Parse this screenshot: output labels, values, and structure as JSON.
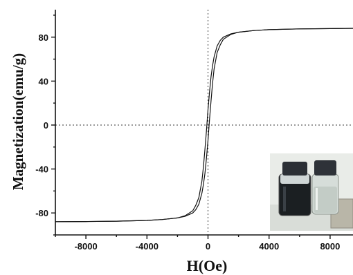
{
  "chart_data": {
    "type": "line",
    "title": "",
    "xlabel": "H(Oe)",
    "ylabel": "Magnetization(emu/g)",
    "xlim": [
      -10000,
      9500
    ],
    "ylim": [
      -100,
      105
    ],
    "xticks": [
      -8000,
      -4000,
      0,
      4000,
      8000
    ],
    "yticks": [
      -80,
      -40,
      0,
      40,
      80
    ],
    "xtick_labels": [
      "-8000",
      "-4000",
      "0",
      "4000",
      "8000"
    ],
    "ytick_labels": [
      "-80",
      "-40",
      "0",
      "40",
      "80"
    ],
    "grid": false,
    "guides": {
      "x": 0,
      "y": 0,
      "style": "dotted"
    },
    "legend": "none",
    "inset": {
      "content": "photo of two glass vials (dark magnetic dispersion and clear liquid) beside a magnet",
      "position": "bottom-right"
    },
    "series": [
      {
        "branch": "descending",
        "x": [
          9500,
          8000,
          6000,
          4000,
          3000,
          2000,
          1500,
          1000,
          800,
          600,
          400,
          300,
          200,
          100,
          0,
          -100,
          -200,
          -300,
          -400,
          -600,
          -800,
          -1000,
          -1500,
          -2000,
          -3000,
          -4000,
          -6000,
          -8000,
          -10000
        ],
        "y": [
          88,
          87.8,
          87.5,
          86.8,
          86,
          84.5,
          83,
          80,
          77,
          72,
          62,
          54,
          44,
          30,
          14,
          -5,
          -22,
          -38,
          -51,
          -66,
          -73,
          -78,
          -82.5,
          -84.5,
          -86,
          -86.8,
          -87.5,
          -87.8,
          -88
        ]
      },
      {
        "branch": "ascending",
        "x": [
          -10000,
          -8000,
          -6000,
          -4000,
          -3000,
          -2000,
          -1500,
          -1000,
          -800,
          -600,
          -400,
          -300,
          -200,
          -100,
          0,
          100,
          200,
          300,
          400,
          600,
          800,
          1000,
          1500,
          2000,
          3000,
          4000,
          6000,
          8000,
          9500
        ],
        "y": [
          -88,
          -87.8,
          -87.5,
          -86.8,
          -86,
          -84.5,
          -83,
          -80,
          -77,
          -72,
          -62,
          -54,
          -44,
          -30,
          -14,
          5,
          22,
          38,
          51,
          66,
          73,
          78,
          82.5,
          84.5,
          86,
          86.8,
          87.5,
          87.8,
          88
        ]
      }
    ]
  }
}
